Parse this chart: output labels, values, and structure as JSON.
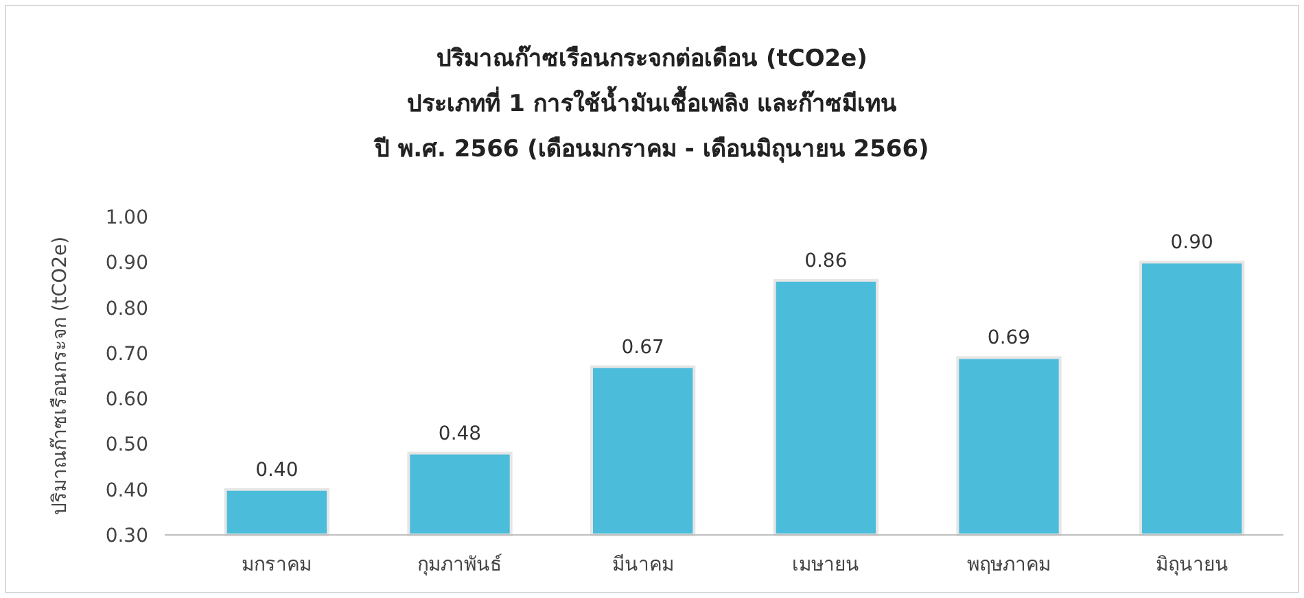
{
  "chart_data": {
    "type": "bar",
    "title": "ปริมาณก๊าซเรือนกระจกต่อเดือน (tCO2e)",
    "subtitle": "ประเภทที่ 1 การใช้น้ำมันเชื้อเพลิง และก๊าซมีเทน\nปี พ.ศ. 2566 (เดือนมกราคม - เดือนมิถุนายน 2566)",
    "ylabel": "ปริมาณก๊าซเรือนกระจก (tCO2e)",
    "categories": [
      "มกราคม",
      "กุมภาพันธ์",
      "มีนาคม",
      "เมษายน",
      "พฤษภาคม",
      "มิถุนายน"
    ],
    "values": [
      0.4,
      0.48,
      0.67,
      0.86,
      0.69,
      0.9
    ],
    "color": "#4bbcda",
    "value_labels": [
      "0.40",
      "0.48",
      "0.67",
      "0.86",
      "0.69",
      "0.90"
    ],
    "ylim": [
      0.3,
      1.0
    ],
    "yticks": [
      {
        "value": 0.3,
        "label": "0.30"
      },
      {
        "value": 0.4,
        "label": "0.40"
      },
      {
        "value": 0.5,
        "label": "0.50"
      },
      {
        "value": 0.6,
        "label": "0.60"
      },
      {
        "value": 0.7,
        "label": "0.70"
      },
      {
        "value": 0.8,
        "label": "0.80"
      },
      {
        "value": 0.9,
        "label": "0.90"
      },
      {
        "value": 1.0,
        "label": "1.00"
      }
    ]
  }
}
